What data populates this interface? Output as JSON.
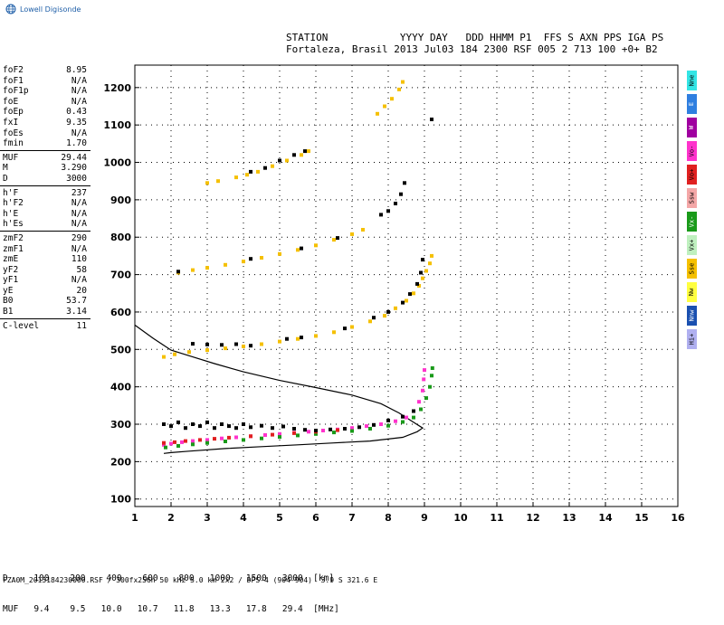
{
  "logo": {
    "text": "Lowell Digisonde",
    "icon": "globe-icon"
  },
  "header": {
    "line1": "STATION            YYYY DAY   DDD HHMM P1  FFS S AXN PPS IGA PS",
    "line2": "Fortaleza, Brasil 2013 Jul03 184 2300 RSF 005 2 713 100 +0+ B2"
  },
  "params": [
    {
      "label": "foF2",
      "value": "8.95"
    },
    {
      "label": "foF1",
      "value": "N/A"
    },
    {
      "label": "foF1p",
      "value": "N/A"
    },
    {
      "label": "foE",
      "value": "N/A"
    },
    {
      "label": "foEp",
      "value": "0.43"
    },
    {
      "label": "fxI",
      "value": "9.35"
    },
    {
      "label": "foEs",
      "value": "N/A"
    },
    {
      "label": "fmin",
      "value": "1.70"
    },
    {
      "sep": true
    },
    {
      "label": "MUF",
      "value": "29.44"
    },
    {
      "label": "M",
      "value": "3.290"
    },
    {
      "label": "D",
      "value": "3000"
    },
    {
      "sep": true
    },
    {
      "label": "h'F",
      "value": "237"
    },
    {
      "label": "h'F2",
      "value": "N/A"
    },
    {
      "label": "h'E",
      "value": "N/A"
    },
    {
      "label": "h'Es",
      "value": "N/A"
    },
    {
      "sep": true
    },
    {
      "label": "zmF2",
      "value": "290"
    },
    {
      "label": "zmF1",
      "value": "N/A"
    },
    {
      "label": "zmE",
      "value": "110"
    },
    {
      "label": "yF2",
      "value": "58"
    },
    {
      "label": "yF1",
      "value": "N/A"
    },
    {
      "label": "yE",
      "value": "20"
    },
    {
      "label": "B0",
      "value": "53.7"
    },
    {
      "label": "B1",
      "value": "3.14"
    },
    {
      "sep": true
    },
    {
      "label": "C-level",
      "value": "11"
    }
  ],
  "legend": [
    {
      "label": "Nne",
      "color": "#33e5e5"
    },
    {
      "label": "E",
      "color": "#2f7fe0"
    },
    {
      "label": "W",
      "color": "#a000a0"
    },
    {
      "label": "Vo-",
      "color": "#ff33cc"
    },
    {
      "label": "Vo+",
      "color": "#e02020"
    },
    {
      "label": "Ssw",
      "color": "#f4a7a7"
    },
    {
      "label": "Vx-",
      "color": "#1a9a1a"
    },
    {
      "label": "Vx+",
      "color": "#bff0bf"
    },
    {
      "label": "Sse",
      "color": "#f5c000"
    },
    {
      "label": "Nw",
      "color": "#ffff40"
    },
    {
      "label": "Nnw",
      "color": "#1a50b0"
    },
    {
      "label": "Hi+",
      "color": "#b0b0f0"
    }
  ],
  "muf_table": {
    "d_label": "D",
    "muf_label": "MUF",
    "d_values": [
      "100",
      "200",
      "400",
      "600",
      "800",
      "1000",
      "1500",
      "3000"
    ],
    "muf_values": [
      "9.4",
      "9.5",
      "10.0",
      "10.7",
      "11.8",
      "13.3",
      "17.8",
      "29.4"
    ],
    "d_unit": "[km]",
    "muf_unit": "[MHz]"
  },
  "footer": "FZA0M_2013184230000.RSF / 300fx256h 50 kHz 5.0 km 2x2 / DPS-4 (904-904)  3.9 S 321.6 E",
  "chart_data": {
    "type": "scatter",
    "xlim": [
      1,
      16
    ],
    "ylim": [
      80,
      1260
    ],
    "x_ticks": [
      1,
      2,
      3,
      4,
      5,
      6,
      7,
      8,
      9,
      10,
      11,
      12,
      13,
      14,
      15,
      16
    ],
    "y_ticks": [
      100,
      200,
      300,
      400,
      500,
      600,
      700,
      800,
      900,
      1000,
      1100,
      1200
    ],
    "grid": "dotted",
    "series": [
      {
        "color": "#ff33cc",
        "points": [
          [
            1.8,
            245
          ],
          [
            2.0,
            248
          ],
          [
            2.3,
            252
          ],
          [
            2.6,
            255
          ],
          [
            3.0,
            258
          ],
          [
            3.4,
            262
          ],
          [
            3.8,
            265
          ],
          [
            4.2,
            268
          ],
          [
            4.6,
            271
          ],
          [
            5.0,
            274
          ],
          [
            5.4,
            277
          ],
          [
            5.8,
            280
          ],
          [
            6.2,
            283
          ],
          [
            6.6,
            286
          ],
          [
            7.0,
            290
          ],
          [
            7.4,
            295
          ],
          [
            7.8,
            300
          ],
          [
            8.2,
            308
          ],
          [
            8.5,
            318
          ],
          [
            8.7,
            335
          ],
          [
            8.85,
            360
          ],
          [
            8.95,
            390
          ],
          [
            8.98,
            420
          ],
          [
            9.0,
            445
          ]
        ]
      },
      {
        "color": "#1a9a1a",
        "points": [
          [
            1.85,
            238
          ],
          [
            2.2,
            242
          ],
          [
            2.6,
            246
          ],
          [
            3.0,
            250
          ],
          [
            3.5,
            254
          ],
          [
            4.0,
            258
          ],
          [
            4.5,
            262
          ],
          [
            5.0,
            266
          ],
          [
            5.5,
            270
          ],
          [
            6.0,
            274
          ],
          [
            6.5,
            278
          ],
          [
            7.0,
            282
          ],
          [
            7.5,
            288
          ],
          [
            8.0,
            296
          ],
          [
            8.4,
            306
          ],
          [
            8.7,
            318
          ],
          [
            8.9,
            340
          ],
          [
            9.05,
            370
          ],
          [
            9.15,
            400
          ],
          [
            9.2,
            430
          ],
          [
            9.22,
            450
          ]
        ]
      },
      {
        "color": "#e02020",
        "points": [
          [
            1.8,
            250
          ],
          [
            2.1,
            252
          ],
          [
            2.4,
            255
          ],
          [
            2.8,
            258
          ],
          [
            3.2,
            261
          ],
          [
            3.6,
            264
          ],
          [
            4.2,
            268
          ],
          [
            4.8,
            272
          ],
          [
            5.4,
            276
          ],
          [
            6.0,
            280
          ],
          [
            6.6,
            284
          ]
        ]
      },
      {
        "color": "#000000",
        "points": [
          [
            1.8,
            300
          ],
          [
            2.0,
            295
          ],
          [
            2.2,
            305
          ],
          [
            2.4,
            290
          ],
          [
            2.6,
            300
          ],
          [
            2.8,
            295
          ],
          [
            3.0,
            305
          ],
          [
            3.2,
            290
          ],
          [
            3.4,
            300
          ],
          [
            3.6,
            295
          ],
          [
            3.8,
            290
          ],
          [
            4.0,
            300
          ],
          [
            4.2,
            292
          ],
          [
            4.5,
            296
          ],
          [
            4.8,
            290
          ],
          [
            5.1,
            294
          ],
          [
            5.4,
            288
          ],
          [
            5.7,
            285
          ],
          [
            6.0,
            283
          ],
          [
            6.4,
            286
          ],
          [
            6.8,
            288
          ],
          [
            7.2,
            292
          ],
          [
            7.6,
            298
          ],
          [
            8.0,
            310
          ],
          [
            8.4,
            320
          ],
          [
            8.7,
            335
          ]
        ]
      },
      {
        "color": "#f5c000",
        "points": [
          [
            1.8,
            480
          ],
          [
            2.1,
            487
          ],
          [
            2.5,
            493
          ],
          [
            3.0,
            498
          ],
          [
            3.5,
            503
          ],
          [
            4.0,
            508
          ],
          [
            4.5,
            514
          ],
          [
            5.0,
            521
          ],
          [
            5.5,
            528
          ],
          [
            6.0,
            536
          ],
          [
            6.5,
            546
          ],
          [
            7.0,
            560
          ],
          [
            7.5,
            575
          ],
          [
            7.9,
            590
          ],
          [
            8.2,
            610
          ],
          [
            8.5,
            630
          ],
          [
            8.7,
            650
          ],
          [
            8.85,
            670
          ],
          [
            8.95,
            690
          ],
          [
            9.05,
            710
          ],
          [
            9.15,
            730
          ],
          [
            9.2,
            750
          ]
        ]
      },
      {
        "color": "#000000",
        "points": [
          [
            2.6,
            515
          ],
          [
            3.0,
            513
          ],
          [
            3.4,
            512
          ],
          [
            3.8,
            514
          ],
          [
            4.2,
            510
          ],
          [
            5.2,
            528
          ],
          [
            5.6,
            532
          ],
          [
            6.8,
            556
          ],
          [
            7.6,
            585
          ],
          [
            8.0,
            600
          ],
          [
            8.4,
            625
          ],
          [
            8.6,
            648
          ],
          [
            8.8,
            675
          ],
          [
            8.9,
            705
          ],
          [
            8.95,
            740
          ]
        ]
      },
      {
        "color": "#f5c000",
        "points": [
          [
            2.2,
            705
          ],
          [
            2.6,
            712
          ],
          [
            3.0,
            718
          ],
          [
            3.5,
            726
          ],
          [
            4.0,
            735
          ],
          [
            4.5,
            745
          ],
          [
            5.0,
            755
          ],
          [
            5.5,
            766
          ],
          [
            6.0,
            778
          ],
          [
            6.5,
            793
          ],
          [
            7.0,
            808
          ],
          [
            7.3,
            820
          ]
        ]
      },
      {
        "color": "#000000",
        "points": [
          [
            2.2,
            708
          ],
          [
            4.2,
            742
          ],
          [
            5.6,
            770
          ],
          [
            6.6,
            798
          ],
          [
            7.8,
            860
          ],
          [
            8.0,
            870
          ],
          [
            8.2,
            890
          ],
          [
            8.35,
            915
          ],
          [
            8.45,
            945
          ]
        ]
      },
      {
        "color": "#f5c000",
        "points": [
          [
            3.0,
            945
          ],
          [
            3.3,
            950
          ],
          [
            3.8,
            960
          ],
          [
            4.1,
            967
          ],
          [
            4.4,
            975
          ],
          [
            4.8,
            990
          ],
          [
            5.2,
            1005
          ],
          [
            5.6,
            1020
          ],
          [
            5.8,
            1030
          ],
          [
            7.7,
            1130
          ],
          [
            7.9,
            1150
          ],
          [
            8.1,
            1170
          ],
          [
            8.3,
            1195
          ],
          [
            8.4,
            1215
          ]
        ]
      },
      {
        "color": "#000000",
        "points": [
          [
            4.2,
            975
          ],
          [
            4.6,
            985
          ],
          [
            5.0,
            1005
          ],
          [
            5.4,
            1020
          ],
          [
            5.7,
            1030
          ],
          [
            9.2,
            1115
          ]
        ]
      }
    ],
    "profile_lines": [
      {
        "color": "#000000",
        "points": [
          [
            1.0,
            565
          ],
          [
            1.5,
            530
          ],
          [
            2.0,
            498
          ],
          [
            2.6,
            480
          ],
          [
            3.2,
            462
          ],
          [
            4.0,
            440
          ],
          [
            5.0,
            417
          ],
          [
            6.0,
            398
          ],
          [
            7.0,
            378
          ],
          [
            7.8,
            355
          ],
          [
            8.3,
            330
          ],
          [
            8.7,
            305
          ],
          [
            8.95,
            290
          ],
          [
            8.8,
            280
          ],
          [
            8.4,
            265
          ],
          [
            7.5,
            255
          ],
          [
            6.5,
            250
          ],
          [
            5.5,
            245
          ],
          [
            4.5,
            240
          ],
          [
            3.5,
            235
          ],
          [
            2.5,
            228
          ],
          [
            2.0,
            224
          ],
          [
            1.8,
            222
          ]
        ]
      }
    ]
  }
}
